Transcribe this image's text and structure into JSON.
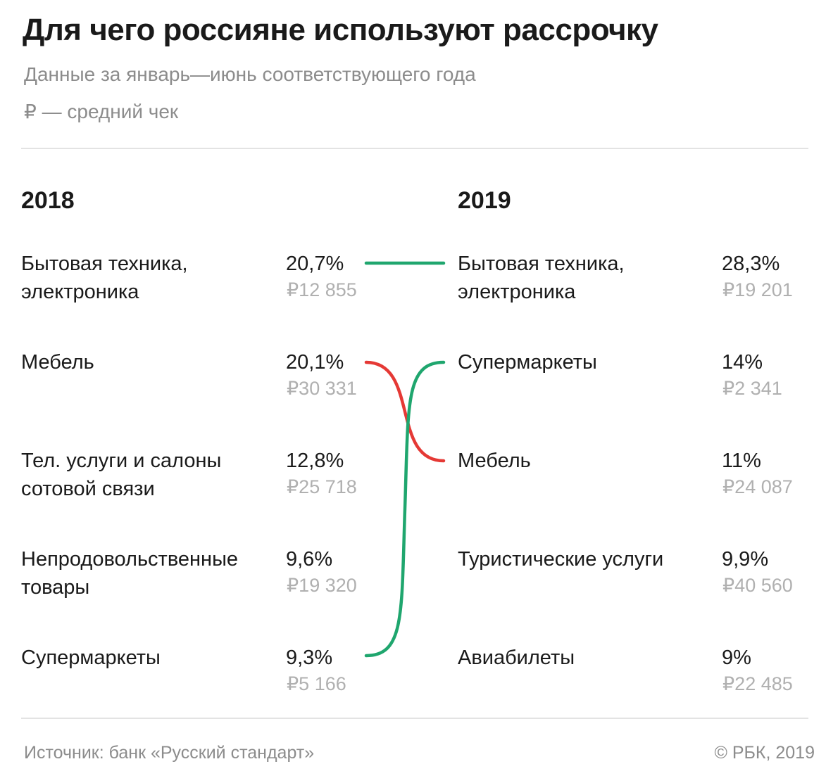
{
  "title": "Для чего россияне используют рассрочку",
  "subtitle": "Данные за январь—июнь соответствующего года",
  "note": "₽ — средний чек",
  "footer": {
    "source": "Источник: банк «Русский стандарт»",
    "copyright": "© РБК, 2019"
  },
  "colors": {
    "up": "#1fa66e",
    "down": "#e53935",
    "avg_text": "#b0b0b0",
    "muted_text": "#8c8c8c"
  },
  "chart_data": {
    "type": "table",
    "columns": [
      {
        "year": "2018",
        "rows": [
          {
            "category": "Бытовая техника, электроника",
            "share": "20,7%",
            "avg_check": "₽12 855"
          },
          {
            "category": "Мебель",
            "share": "20,1%",
            "avg_check": "₽30 331"
          },
          {
            "category": "Тел. услуги и салоны сотовой связи",
            "share": "12,8%",
            "avg_check": "₽25 718"
          },
          {
            "category": "Непродовольственные товары",
            "share": "9,6%",
            "avg_check": "₽19 320"
          },
          {
            "category": "Супермаркеты",
            "share": "9,3%",
            "avg_check": "₽5 166"
          }
        ]
      },
      {
        "year": "2019",
        "rows": [
          {
            "category": "Бытовая техника, электроника",
            "share": "28,3%",
            "avg_check": "₽19 201"
          },
          {
            "category": "Супермаркеты",
            "share": "14%",
            "avg_check": "₽2 341"
          },
          {
            "category": "Мебель",
            "share": "11%",
            "avg_check": "₽24 087"
          },
          {
            "category": "Туристические услуги",
            "share": "9,9%",
            "avg_check": "₽40 560"
          },
          {
            "category": "Авиабилеты",
            "share": "9%",
            "avg_check": "₽22 485"
          }
        ]
      }
    ],
    "links": [
      {
        "from_rank": 1,
        "to_rank": 1,
        "trend": "up"
      },
      {
        "from_rank": 2,
        "to_rank": 3,
        "trend": "down"
      },
      {
        "from_rank": 5,
        "to_rank": 2,
        "trend": "up"
      }
    ]
  }
}
